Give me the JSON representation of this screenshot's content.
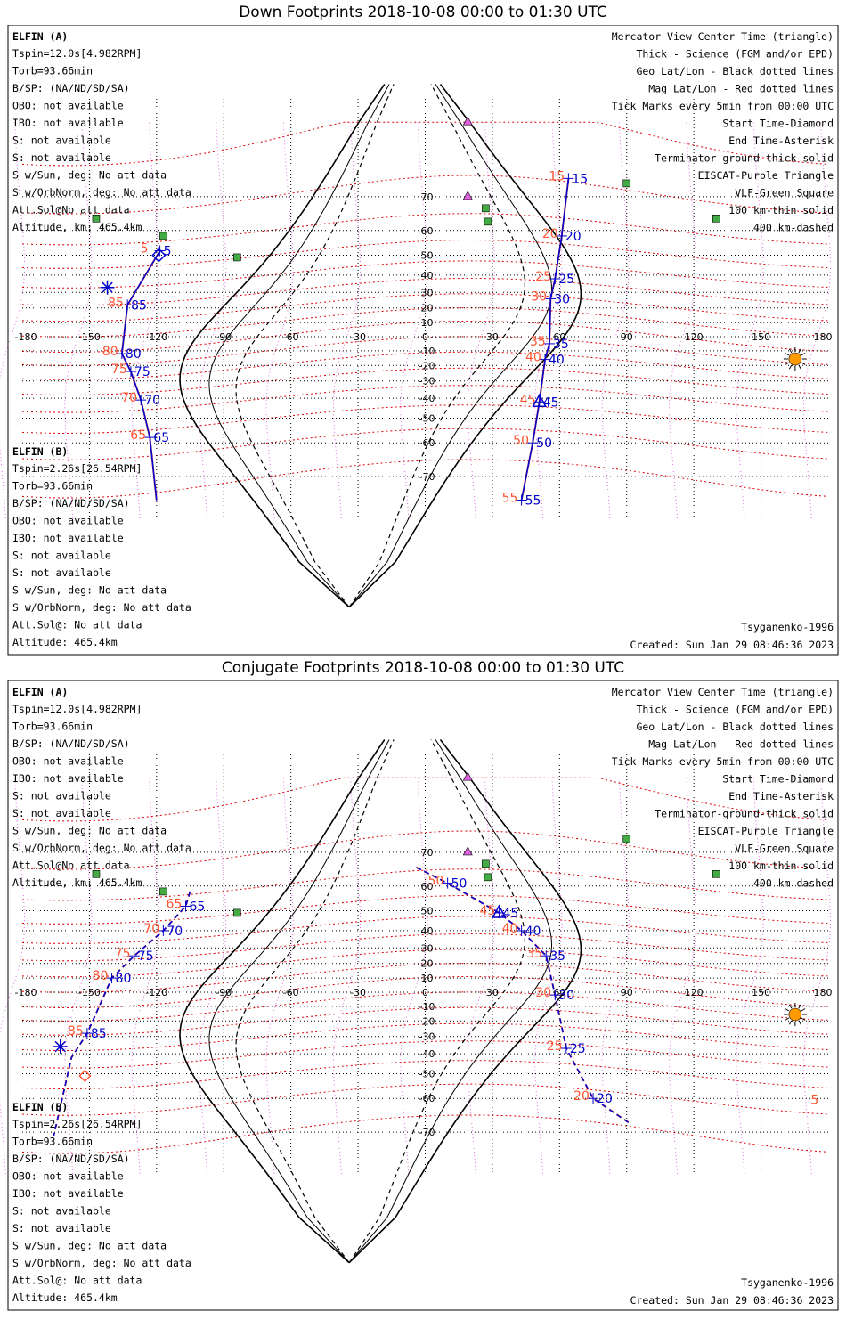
{
  "panels": [
    {
      "title": "Down Footprints 2018-10-08 00:00 to 01:30 UTC",
      "sc_a_name": "ELFIN (A)",
      "sc_a_lines": [
        "Tspin=12.0s[4.982RPM]",
        "Torb=93.66min",
        "B/SP: (NA/ND/SD/SA)",
        "OBO: not available",
        "IBO: not available",
        "S: not available",
        "S: not available",
        "S w/Sun, deg: No att data",
        "S w/OrbNorm, deg: No att data",
        "Att.Sol@No att data",
        "Altitude, km: 465.4km"
      ],
      "sc_b_name": "ELFIN (B)",
      "sc_b_lines": [
        "Tspin=2.26s[26.54RPM]",
        "Torb=93.66min",
        "B/SP: (NA/ND/SD/SA)",
        "OBO: not available",
        "IBO: not available",
        "S: not available",
        "S: not available",
        "S w/Sun, deg: No att data",
        "S w/OrbNorm, deg: No att data",
        "Att.Sol@: No att data",
        "Altitude: 465.4km"
      ],
      "footer_right": "Created: Sun Jan 29 08:46:36 2023",
      "model": "Tsyganenko-1996",
      "track_a": [
        {
          "lon": -118.5,
          "lat": 52,
          "label": "5",
          "label_dy": 0
        },
        {
          "lon": -133,
          "lat": 22,
          "label": "85"
        },
        {
          "lon": -135.5,
          "lat": -12,
          "label": "80"
        },
        {
          "lon": -131.5,
          "lat": -24,
          "label": "75"
        },
        {
          "lon": -127,
          "lat": -41,
          "label": "70"
        },
        {
          "lon": -123,
          "lat": -58,
          "label": "65"
        },
        {
          "lon": -120,
          "lat": -75
        }
      ],
      "track_a2": [
        {
          "lon": 64,
          "lat": 74,
          "label": "15"
        },
        {
          "lon": 61,
          "lat": 58,
          "label": "20"
        },
        {
          "lon": 58,
          "lat": 38,
          "label": "25"
        },
        {
          "lon": 56,
          "lat": 26,
          "label": "30"
        },
        {
          "lon": 55.5,
          "lat": -5,
          "label": "35"
        },
        {
          "lon": 53.5,
          "lat": -16,
          "label": "40"
        },
        {
          "lon": 51,
          "lat": -42,
          "label": "45"
        },
        {
          "lon": 48,
          "lat": -60,
          "label": "50"
        },
        {
          "lon": 43,
          "lat": -75,
          "label": "55"
        }
      ]
    },
    {
      "title": "Conjugate Footprints 2018-10-08 00:00 to 01:30 UTC",
      "sc_a_name": "ELFIN (A)",
      "sc_a_lines": [
        "Tspin=12.0s[4.982RPM]",
        "Torb=93.66min",
        "B/SP: (NA/ND/SD/SA)",
        "OBO: not available",
        "IBO: not available",
        "S: not available",
        "S: not available",
        "S w/Sun, deg: No att data",
        "S w/OrbNorm, deg: No att data",
        "Att.Sol@No att data",
        "Altitude, km: 465.4km"
      ],
      "sc_b_name": "ELFIN (B)",
      "sc_b_lines": [
        "Tspin=2.26s[26.54RPM]",
        "Torb=93.66min",
        "B/SP: (NA/ND/SD/SA)",
        "OBO: not available",
        "IBO: not available",
        "S: not available",
        "S: not available",
        "S w/Sun, deg: No att data",
        "S w/OrbNorm, deg: No att data",
        "Att.Sol@: No att data",
        "Altitude: 465.4km"
      ],
      "footer_right": "Created: Sun Jan 29 08:46:36 2023",
      "model": "Tsyganenko-1996",
      "track_a": [
        {
          "lon": -105,
          "lat": 58
        },
        {
          "lon": -107,
          "lat": 52,
          "label": "65"
        },
        {
          "lon": -117,
          "lat": 40,
          "label": "70"
        },
        {
          "lon": -130,
          "lat": 25,
          "label": "75"
        },
        {
          "lon": -140,
          "lat": 10,
          "label": "80"
        },
        {
          "lon": -151,
          "lat": -28,
          "label": "85"
        },
        {
          "lon": -158,
          "lat": -42
        },
        {
          "lon": -166,
          "lat": -71
        }
      ],
      "track_a2": [
        {
          "lon": -4,
          "lat": 66
        },
        {
          "lon": 10,
          "lat": 61,
          "label": "50"
        },
        {
          "lon": 33,
          "lat": 49,
          "label": "45"
        },
        {
          "lon": 43,
          "lat": 40,
          "label": "40"
        },
        {
          "lon": 54,
          "lat": 25,
          "label": "35"
        },
        {
          "lon": 58,
          "lat": -2,
          "label": "30"
        },
        {
          "lon": 63,
          "lat": -37,
          "label": "25"
        },
        {
          "lon": 75,
          "lat": -60,
          "label": "20"
        },
        {
          "lon": 92,
          "lat": -68
        }
      ]
    }
  ],
  "legend_lines": [
    {
      "text": "Mercator View Center Time (triangle)",
      "color": "#000000"
    },
    {
      "text": "Thick - Science (FGM and/or EPD)",
      "color": "#000000"
    },
    {
      "text": "Geo Lat/Lon - Black dotted lines",
      "color": "#000000"
    },
    {
      "text": "Mag Lat/Lon - Red dotted lines",
      "color": "#e00000"
    },
    {
      "text": "Tick Marks every 5min from 00:00 UTC",
      "color": "#000000"
    },
    {
      "text": "Start Time-Diamond",
      "color": "#000000"
    },
    {
      "text": "End Time-Asterisk",
      "color": "#000000"
    },
    {
      "text": "Terminator-ground-thick solid",
      "color": "#000000"
    },
    {
      "text": "EISCAT-Purple Triangle",
      "color": "#e040e0"
    },
    {
      "text": "VLF-Green Square",
      "color": "#40a040"
    },
    {
      "text": "100 km-thin solid",
      "color": "#000000"
    },
    {
      "text": "400 km-dashed",
      "color": "#000000"
    }
  ],
  "lon_ticks": [
    "-180",
    "-150",
    "-120",
    "-90",
    "-60",
    "-30",
    "0",
    "30",
    "60",
    "90",
    "120",
    "150",
    "180"
  ],
  "lat_ticks": [
    "70",
    "60",
    "50",
    "40",
    "30",
    "20",
    "10",
    "-10",
    "-20",
    "-30",
    "-40",
    "-50",
    "-60",
    "-70"
  ],
  "conj_extra_label": "5",
  "colors": {
    "sc_a": "#0000cc",
    "sc_b": "#ff5533",
    "mag": "#dd0000",
    "eiscat": "#e060e0",
    "vlf": "#44aa44",
    "sun": "#ff9900"
  },
  "stations": {
    "eiscat": [
      {
        "lon": 19,
        "lat": 82
      },
      {
        "lon": 19,
        "lat": 70
      }
    ],
    "vlf": [
      {
        "lon": 27,
        "lat": 67
      },
      {
        "lon": 28,
        "lat": 63
      },
      {
        "lon": -147,
        "lat": 64
      },
      {
        "lon": -117,
        "lat": 58
      },
      {
        "lon": -84,
        "lat": 49
      },
      {
        "lon": 130,
        "lat": 64
      },
      {
        "lon": 90,
        "lat": 73
      }
    ]
  }
}
